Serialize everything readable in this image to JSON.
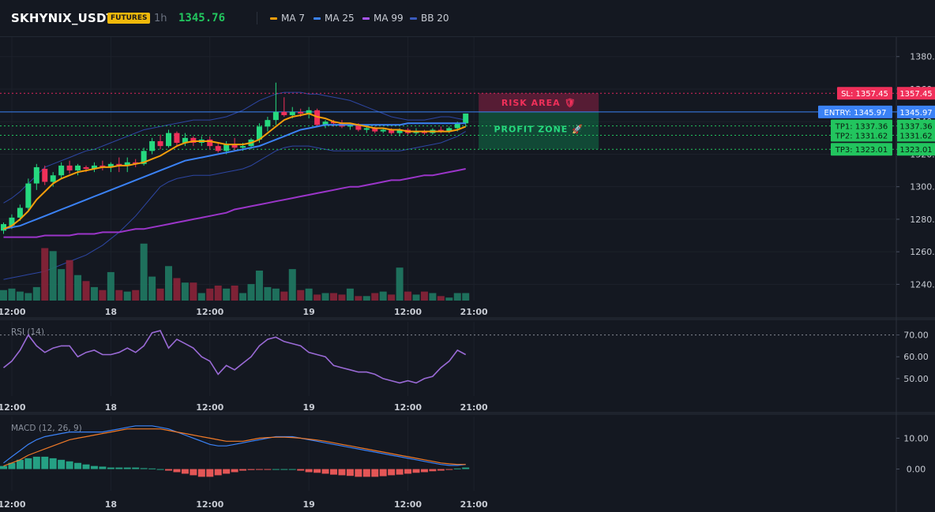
{
  "header": {
    "symbol": "SKHYNIX_USDT",
    "badge": "FUTURES",
    "timeframe": "1h",
    "price": "1345.76",
    "legend": [
      {
        "label": "MA 7",
        "color": "#f59e0b"
      },
      {
        "label": "MA 25",
        "color": "#3b82f6"
      },
      {
        "label": "MA 99",
        "color": "#a855f7"
      },
      {
        "label": "BB 20",
        "color": "#3b5bbd"
      }
    ]
  },
  "colors": {
    "up": "#26d97f",
    "down": "#f0305a",
    "ma7": "#f59e0b",
    "ma25": "#3b82f6",
    "ma99": "#9b35c9",
    "bb": "#2d46a3",
    "rsi": "#9a6ad6",
    "macd": "#3b82f6",
    "signal": "#f07a28"
  },
  "chart_data": [
    {
      "type": "candlestick",
      "title": "",
      "ylim": [
        1230,
        1392
      ],
      "yticks": [
        1380,
        1360,
        1340,
        1320,
        1300,
        1280,
        1260,
        1240
      ],
      "ytick_labels": [
        "1380.00",
        "1360.00",
        "1340.00",
        "1320.00",
        "1300.00",
        "1280.00",
        "1260.00",
        "1240.00"
      ],
      "xticks": [
        {
          "x": 1,
          "label": "12:00"
        },
        {
          "x": 13,
          "label": "18"
        },
        {
          "x": 25,
          "label": "12:00"
        },
        {
          "x": 37,
          "label": "19"
        },
        {
          "x": 49,
          "label": "12:00"
        },
        {
          "x": 57,
          "label": "21:00"
        }
      ],
      "candles": [
        [
          1273,
          1278,
          1271,
          1277
        ],
        [
          1276,
          1283,
          1274,
          1281
        ],
        [
          1281,
          1289,
          1279,
          1287
        ],
        [
          1287,
          1305,
          1285,
          1302
        ],
        [
          1302,
          1314,
          1298,
          1312
        ],
        [
          1311,
          1313,
          1301,
          1303
        ],
        [
          1303,
          1309,
          1300,
          1307
        ],
        [
          1307,
          1315,
          1305,
          1313
        ],
        [
          1313,
          1316,
          1308,
          1310
        ],
        [
          1310,
          1314,
          1307,
          1313
        ],
        [
          1312,
          1313,
          1309,
          1311
        ],
        [
          1311,
          1315,
          1309,
          1313
        ],
        [
          1313,
          1316,
          1310,
          1312
        ],
        [
          1312,
          1315,
          1309,
          1314
        ],
        [
          1314,
          1318,
          1309,
          1313
        ],
        [
          1313,
          1318,
          1309,
          1315
        ],
        [
          1315,
          1317,
          1312,
          1314
        ],
        [
          1314,
          1324,
          1313,
          1322
        ],
        [
          1322,
          1330,
          1320,
          1328
        ],
        [
          1328,
          1332,
          1323,
          1325
        ],
        [
          1325,
          1335,
          1324,
          1333
        ],
        [
          1333,
          1334,
          1325,
          1327
        ],
        [
          1327,
          1333,
          1325,
          1330
        ],
        [
          1330,
          1331,
          1325,
          1327
        ],
        [
          1327,
          1331,
          1325,
          1329
        ],
        [
          1329,
          1331,
          1323,
          1325
        ],
        [
          1325,
          1327,
          1321,
          1322
        ],
        [
          1322,
          1328,
          1320,
          1326
        ],
        [
          1326,
          1330,
          1322,
          1324
        ],
        [
          1324,
          1327,
          1322,
          1325
        ],
        [
          1325,
          1330,
          1323,
          1329
        ],
        [
          1329,
          1339,
          1327,
          1337
        ],
        [
          1337,
          1343,
          1334,
          1341
        ],
        [
          1341,
          1364,
          1338,
          1346
        ],
        [
          1346,
          1355,
          1343,
          1344
        ],
        [
          1344,
          1349,
          1342,
          1346
        ],
        [
          1346,
          1348,
          1343,
          1345
        ],
        [
          1345,
          1349,
          1342,
          1347
        ],
        [
          1347,
          1348,
          1337,
          1338
        ],
        [
          1338,
          1341,
          1336,
          1340
        ],
        [
          1340,
          1341,
          1337,
          1339
        ],
        [
          1339,
          1341,
          1336,
          1337
        ],
        [
          1337,
          1339,
          1335,
          1338
        ],
        [
          1338,
          1339,
          1334,
          1335
        ],
        [
          1335,
          1338,
          1333,
          1336
        ],
        [
          1336,
          1337,
          1333,
          1334
        ],
        [
          1334,
          1336,
          1333,
          1335
        ],
        [
          1335,
          1336,
          1332,
          1333
        ],
        [
          1333,
          1336,
          1331,
          1335
        ],
        [
          1335,
          1336,
          1332,
          1333
        ],
        [
          1333,
          1336,
          1332,
          1334
        ],
        [
          1334,
          1335,
          1332,
          1333
        ],
        [
          1333,
          1336,
          1332,
          1335
        ],
        [
          1335,
          1337,
          1333,
          1334
        ],
        [
          1334,
          1337,
          1333,
          1336
        ],
        [
          1336,
          1340,
          1334,
          1339
        ],
        [
          1339,
          1345,
          1337,
          1345
        ]
      ],
      "volume": [
        7,
        8,
        6,
        5,
        9,
        35,
        33,
        21,
        27,
        17,
        13,
        9,
        7,
        19,
        7,
        6,
        7,
        38,
        16,
        8,
        23,
        15,
        12,
        12,
        5,
        8,
        10,
        8,
        10,
        5,
        11,
        20,
        9,
        8,
        6,
        21,
        7,
        8,
        4,
        5,
        5,
        4,
        8,
        3,
        3,
        5,
        6,
        4,
        22,
        6,
        4,
        6,
        5,
        3,
        2,
        5,
        5
      ],
      "ma7": [
        1274,
        1276,
        1280,
        1285,
        1292,
        1297,
        1302,
        1305,
        1307,
        1309,
        1310,
        1311,
        1312,
        1312,
        1313,
        1313,
        1314,
        1315,
        1317,
        1319,
        1322,
        1325,
        1327,
        1328,
        1328,
        1328,
        1327,
        1326,
        1326,
        1326,
        1327,
        1329,
        1333,
        1337,
        1341,
        1343,
        1344,
        1345,
        1343,
        1342,
        1340,
        1339,
        1339,
        1338,
        1337,
        1336,
        1336,
        1335,
        1335,
        1334,
        1334,
        1334,
        1334,
        1334,
        1334,
        1335,
        1337
      ],
      "ma25": [
        1274,
        1275,
        1276,
        1278,
        1280,
        1282,
        1284,
        1286,
        1288,
        1290,
        1292,
        1294,
        1296,
        1298,
        1300,
        1302,
        1304,
        1306,
        1308,
        1310,
        1312,
        1314,
        1316,
        1317,
        1318,
        1319,
        1320,
        1321,
        1322,
        1323,
        1324,
        1325,
        1327,
        1329,
        1331,
        1333,
        1335,
        1336,
        1337,
        1338,
        1338,
        1338,
        1338,
        1338,
        1338,
        1338,
        1338,
        1338,
        1338,
        1339,
        1339,
        1339,
        1339,
        1339,
        1339,
        1339,
        1339
      ],
      "ma99": [
        1269,
        1269,
        1269,
        1269,
        1269,
        1270,
        1270,
        1270,
        1270,
        1271,
        1271,
        1271,
        1272,
        1272,
        1272,
        1273,
        1274,
        1274,
        1275,
        1276,
        1277,
        1278,
        1279,
        1280,
        1281,
        1282,
        1283,
        1284,
        1286,
        1287,
        1288,
        1289,
        1290,
        1291,
        1292,
        1293,
        1294,
        1295,
        1296,
        1297,
        1298,
        1299,
        1300,
        1300,
        1301,
        1302,
        1303,
        1304,
        1304,
        1305,
        1306,
        1307,
        1307,
        1308,
        1309,
        1310,
        1311
      ],
      "bb_upper": [
        1290,
        1293,
        1297,
        1302,
        1307,
        1312,
        1314,
        1316,
        1318,
        1320,
        1322,
        1323,
        1325,
        1327,
        1329,
        1331,
        1333,
        1335,
        1336,
        1337,
        1338,
        1339,
        1340,
        1341,
        1341,
        1341,
        1342,
        1343,
        1345,
        1347,
        1350,
        1353,
        1355,
        1357,
        1358,
        1358,
        1358,
        1357,
        1357,
        1356,
        1355,
        1354,
        1353,
        1351,
        1349,
        1347,
        1345,
        1343,
        1342,
        1341,
        1341,
        1341,
        1342,
        1343,
        1343,
        1342,
        1341
      ],
      "bb_lower": [
        1243,
        1244,
        1245,
        1246,
        1247,
        1248,
        1250,
        1252,
        1254,
        1256,
        1258,
        1261,
        1264,
        1268,
        1272,
        1277,
        1282,
        1288,
        1294,
        1300,
        1303,
        1305,
        1306,
        1307,
        1307,
        1307,
        1308,
        1309,
        1310,
        1311,
        1313,
        1316,
        1319,
        1322,
        1324,
        1325,
        1325,
        1325,
        1324,
        1323,
        1322,
        1322,
        1322,
        1322,
        1322,
        1322,
        1322,
        1322,
        1322,
        1323,
        1324,
        1325,
        1326,
        1327,
        1329,
        1331,
        1334
      ],
      "levels": {
        "sl": 1357.45,
        "entry": 1345.97,
        "tp1": 1337.36,
        "tp2": 1331.62,
        "tp3": 1323.01
      },
      "level_labels": {
        "sl": "SL: 1357.45",
        "sl_axis": "1357.45",
        "entry": "ENTRY: 1345.97",
        "entry_axis": "1345.97",
        "tp1": "TP1: 1337.36",
        "tp1_axis": "1337.36",
        "tp2": "TP2: 1331.62",
        "tp2_axis": "1331.62",
        "tp3": "TP3: 1323.01",
        "tp3_axis": "1323.01"
      },
      "zones": {
        "risk": "RISK AREA 🛡",
        "profit": "PROFIT ZONE 🚀"
      }
    },
    {
      "type": "line",
      "title": "RSI (14)",
      "ylim": [
        42,
        76
      ],
      "yticks": [
        70,
        60,
        50
      ],
      "ytick_labels": [
        "70.00",
        "60.00",
        "50.00"
      ],
      "overbought": 70,
      "values": [
        55,
        58,
        63,
        70,
        65,
        62,
        64,
        65,
        65,
        60,
        62,
        63,
        61,
        61,
        62,
        64,
        62,
        65,
        71,
        72,
        64,
        68,
        66,
        64,
        60,
        58,
        52,
        56,
        54,
        57,
        60,
        65,
        68,
        69,
        67,
        66,
        65,
        62,
        61,
        60,
        56,
        55,
        54,
        53,
        53,
        52,
        50,
        49,
        48,
        49,
        48,
        50,
        51,
        55,
        58,
        63,
        61
      ]
    },
    {
      "type": "line",
      "title": "MACD (12, 26, 9)",
      "ylim": [
        -7,
        17
      ],
      "yticks": [
        10,
        0
      ],
      "ytick_labels": [
        "10.00",
        "0.00"
      ],
      "macd": [
        2,
        4,
        6,
        8,
        9.5,
        10.5,
        11,
        11.5,
        12,
        12,
        12,
        12,
        12,
        12.5,
        13,
        13.5,
        14,
        14,
        14,
        13.5,
        13,
        12,
        11,
        10,
        9,
        8,
        7.5,
        7.5,
        8,
        8.5,
        9,
        9.5,
        10,
        10.5,
        10.5,
        10.5,
        10,
        9.5,
        9,
        8.5,
        8,
        7.5,
        7,
        6.5,
        6,
        5.5,
        5,
        4.5,
        4,
        3.5,
        3,
        2.5,
        2,
        1.5,
        1.2,
        1.2,
        1.5
      ],
      "signal": [
        1,
        2,
        3,
        4.5,
        5.5,
        6.5,
        7.5,
        8.5,
        9.5,
        10,
        10.5,
        11,
        11.5,
        12,
        12.5,
        13,
        13,
        13,
        13,
        13,
        12.5,
        12,
        11.5,
        11,
        10.5,
        10,
        9.5,
        9,
        9,
        9,
        9.5,
        10,
        10.2,
        10.3,
        10.3,
        10.2,
        10,
        9.7,
        9.4,
        9,
        8.5,
        8,
        7.5,
        7,
        6.5,
        6,
        5.5,
        5,
        4.5,
        4,
        3.5,
        3,
        2.5,
        2,
        1.7,
        1.5,
        1.5
      ],
      "histogram": [
        1,
        2,
        3,
        3.5,
        4,
        4,
        3.5,
        3,
        2.5,
        2,
        1.5,
        1,
        0.8,
        0.5,
        0.5,
        0.5,
        0.5,
        0.3,
        0.2,
        0,
        -0.5,
        -1,
        -1.5,
        -2,
        -2.5,
        -2.5,
        -2,
        -1.5,
        -1,
        -0.5,
        -0.3,
        -0.2,
        -0.1,
        0,
        0,
        0,
        -0.5,
        -1,
        -1.2,
        -1.5,
        -1.8,
        -2,
        -2.2,
        -2.5,
        -2.5,
        -2.5,
        -2.3,
        -2,
        -1.8,
        -1.5,
        -1.2,
        -1,
        -0.7,
        -0.5,
        -0.2,
        0.2,
        0.5
      ]
    }
  ]
}
